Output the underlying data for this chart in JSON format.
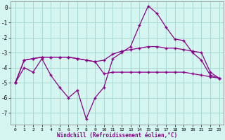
{
  "xlabel": "Windchill (Refroidissement éolien,°C)",
  "x": [
    0,
    1,
    2,
    3,
    4,
    5,
    6,
    7,
    8,
    9,
    10,
    11,
    12,
    13,
    14,
    15,
    16,
    17,
    18,
    19,
    20,
    21,
    22,
    23
  ],
  "curve1": [
    -5.0,
    -4.0,
    -4.3,
    -3.4,
    -4.5,
    -5.3,
    -6.0,
    -5.5,
    -7.4,
    -6.0,
    -5.3,
    -3.4,
    -3.0,
    -2.6,
    -1.2,
    0.1,
    -0.4,
    -1.3,
    -2.1,
    -2.2,
    -3.0,
    -3.5,
    -4.5,
    -4.7
  ],
  "curve2": [
    -5.0,
    -3.5,
    -3.4,
    -3.3,
    -3.3,
    -3.3,
    -3.3,
    -3.4,
    -3.5,
    -3.6,
    -3.5,
    -3.1,
    -2.9,
    -2.8,
    -2.7,
    -2.6,
    -2.6,
    -2.7,
    -2.7,
    -2.8,
    -2.9,
    -3.0,
    -4.3,
    -4.7
  ],
  "curve3": [
    -5.0,
    -3.5,
    -3.4,
    -3.3,
    -3.3,
    -3.3,
    -3.3,
    -3.4,
    -3.5,
    -3.6,
    -4.4,
    -4.3,
    -4.3,
    -4.3,
    -4.3,
    -4.3,
    -4.3,
    -4.3,
    -4.3,
    -4.3,
    -4.4,
    -4.5,
    -4.6,
    -4.7
  ],
  "line_color": "#880088",
  "bg_color": "#d4f5f0",
  "grid_color": "#a8d8d0",
  "ylim": [
    -7.8,
    0.4
  ],
  "xlim": [
    -0.5,
    23.5
  ],
  "yticks": [
    0,
    -1,
    -2,
    -3,
    -4,
    -5,
    -6,
    -7
  ]
}
